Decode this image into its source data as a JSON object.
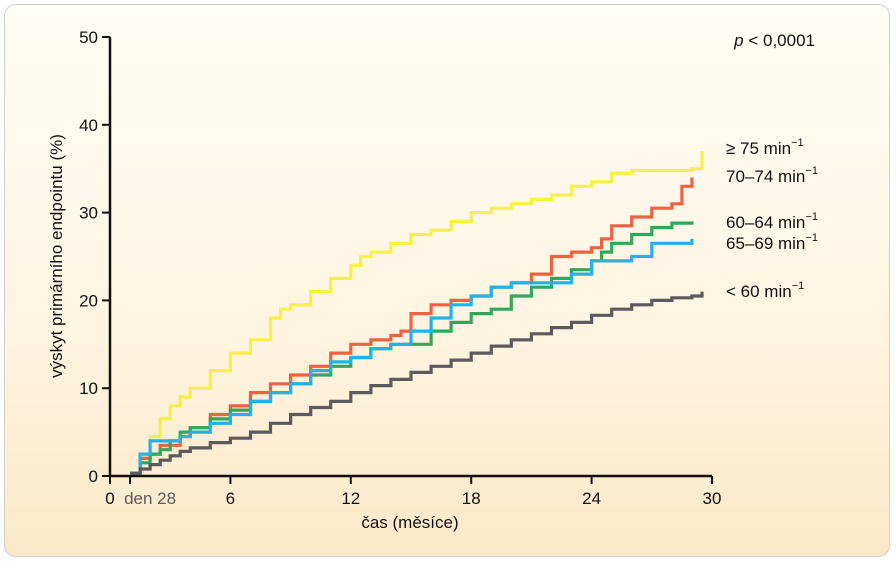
{
  "chart_data": {
    "type": "line",
    "step": true,
    "annotation": "p < 0,0001",
    "xlabel": "čas (měsíce)",
    "ylabel": "výskyt primárního endpointu (%)",
    "xlim": [
      0,
      30
    ],
    "ylim": [
      0,
      50
    ],
    "x_ticks": [
      0,
      6,
      12,
      18,
      24,
      30
    ],
    "x_extra_tick": {
      "x": 1,
      "label": "den 28"
    },
    "y_ticks": [
      0,
      10,
      20,
      30,
      40,
      50
    ],
    "grid": false,
    "legend": "right",
    "series": [
      {
        "name": "≥ 75 min",
        "sup": "−1",
        "color": "#f7ef4a",
        "x": [
          1,
          1.5,
          2,
          2.5,
          3,
          3.5,
          4,
          5,
          6,
          7,
          8,
          8.5,
          9,
          10,
          11,
          12,
          12.5,
          13,
          14,
          15,
          16,
          17,
          18,
          19,
          20,
          21,
          22,
          23,
          24,
          25,
          26,
          27,
          28,
          29,
          29.5
        ],
        "y": [
          0.3,
          2.5,
          4.5,
          6.5,
          8,
          9,
          10,
          12,
          14,
          15.5,
          18,
          19,
          19.5,
          21,
          22.5,
          24,
          25,
          25.5,
          26.5,
          27.5,
          28,
          29,
          30,
          30.5,
          31,
          31.5,
          32,
          33,
          33.5,
          34.5,
          34.8,
          34.8,
          34.8,
          35,
          37
        ]
      },
      {
        "name": "70–74 min",
        "sup": "−1",
        "color": "#ee6242",
        "x": [
          1,
          1.5,
          2,
          2.5,
          3,
          3.5,
          4,
          5,
          6,
          7,
          8,
          9,
          10,
          11,
          12,
          13,
          14,
          14.5,
          15,
          16,
          17,
          18,
          19,
          20,
          21,
          22,
          23,
          24,
          24.5,
          25,
          26,
          27,
          28,
          28.5,
          29
        ],
        "y": [
          0.3,
          2,
          2.5,
          3.5,
          3.5,
          4.5,
          5.5,
          7,
          8,
          9.5,
          10.5,
          11.5,
          12.5,
          14,
          15,
          15.5,
          16,
          16.5,
          18.5,
          19.5,
          20,
          20.5,
          21.5,
          22,
          23,
          25,
          25.5,
          26,
          27,
          28.5,
          29.5,
          30.5,
          31,
          33,
          34
        ]
      },
      {
        "name": "60–64 min",
        "sup": "−1",
        "color": "#2ea85a",
        "x": [
          1,
          1.5,
          2,
          2.5,
          3,
          3.5,
          4,
          5,
          6,
          7,
          8,
          9,
          10,
          11,
          12,
          13,
          14,
          15,
          16,
          17,
          18,
          19,
          20,
          21,
          22,
          23,
          24,
          24.5,
          25,
          26,
          27,
          28,
          29
        ],
        "y": [
          0.3,
          1.5,
          2.5,
          3,
          4,
          5,
          5.5,
          6.5,
          7.5,
          8.5,
          9.5,
          10.5,
          11.5,
          12.5,
          13.5,
          14.5,
          15,
          15,
          16.5,
          17.5,
          18.5,
          19,
          20.5,
          21.5,
          22.5,
          23.5,
          24.5,
          25.5,
          26.5,
          27.5,
          28.3,
          28.8,
          29
        ]
      },
      {
        "name": "65–69 min",
        "sup": "−1",
        "color": "#22b2e8",
        "x": [
          1,
          1.5,
          2,
          2.5,
          3,
          3.5,
          4,
          5,
          6,
          7,
          8,
          9,
          10,
          11,
          12,
          13,
          14,
          15,
          16,
          17,
          18,
          19,
          20,
          21,
          22,
          23,
          24,
          25,
          26,
          27,
          28,
          29
        ],
        "y": [
          0.3,
          2.5,
          4,
          4,
          4,
          4.5,
          5,
          6,
          7,
          8.5,
          9.5,
          10.5,
          12,
          13,
          13.5,
          14.5,
          15,
          16.5,
          18,
          19.5,
          20.5,
          21.5,
          22,
          22,
          22,
          23,
          24.5,
          24.5,
          25,
          26.5,
          26.5,
          27
        ]
      },
      {
        "name": "< 60 min",
        "sup": "−1",
        "color": "#5b5b5f",
        "x": [
          1,
          1.5,
          2,
          2.5,
          3,
          3.5,
          4,
          5,
          6,
          7,
          8,
          9,
          10,
          11,
          12,
          13,
          14,
          15,
          16,
          17,
          18,
          19,
          20,
          21,
          22,
          23,
          24,
          25,
          26,
          27,
          28,
          29,
          29.5
        ],
        "y": [
          0.3,
          0.8,
          1.3,
          1.8,
          2.3,
          2.8,
          3.2,
          3.8,
          4.3,
          5,
          6,
          7,
          7.8,
          8.5,
          9.5,
          10.3,
          11,
          11.8,
          12.5,
          13.2,
          14,
          14.8,
          15.5,
          16.2,
          16.9,
          17.5,
          18.3,
          19,
          19.5,
          20,
          20.3,
          20.5,
          21
        ]
      }
    ]
  }
}
